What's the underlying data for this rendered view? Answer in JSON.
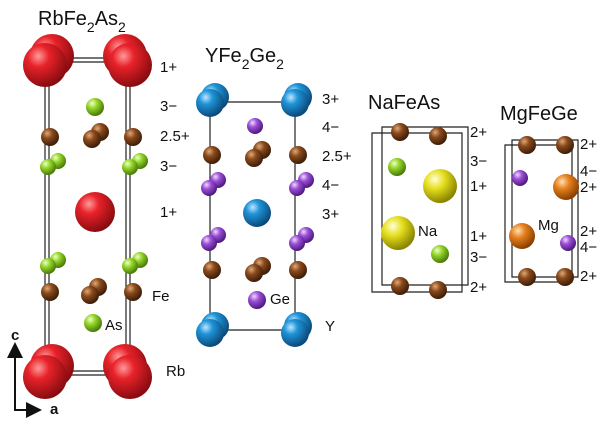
{
  "structures": [
    {
      "title": [
        "RbFe",
        "2",
        "As",
        "2"
      ],
      "charges": [
        "1+",
        "3−",
        "2.5+",
        "3−",
        "1+"
      ],
      "atom_labels": [
        "Fe",
        "As",
        "Rb"
      ]
    },
    {
      "title": [
        "YFe",
        "2",
        "Ge",
        "2"
      ],
      "charges": [
        "3+",
        "4−",
        "2.5+",
        "4−",
        "3+"
      ],
      "atom_labels": [
        "Ge",
        "Y"
      ]
    },
    {
      "title": [
        "NaFeAs"
      ],
      "charges": [
        "2+",
        "3−",
        "1+",
        "1+",
        "3−",
        "2+"
      ],
      "atom_labels": [
        "Na"
      ]
    },
    {
      "title": [
        "MgFeGe"
      ],
      "charges": [
        "2+",
        "4−",
        "2+",
        "2+",
        "4−",
        "2+"
      ],
      "atom_labels": [
        "Mg"
      ]
    }
  ],
  "axes": {
    "c": "c",
    "a": "a"
  }
}
